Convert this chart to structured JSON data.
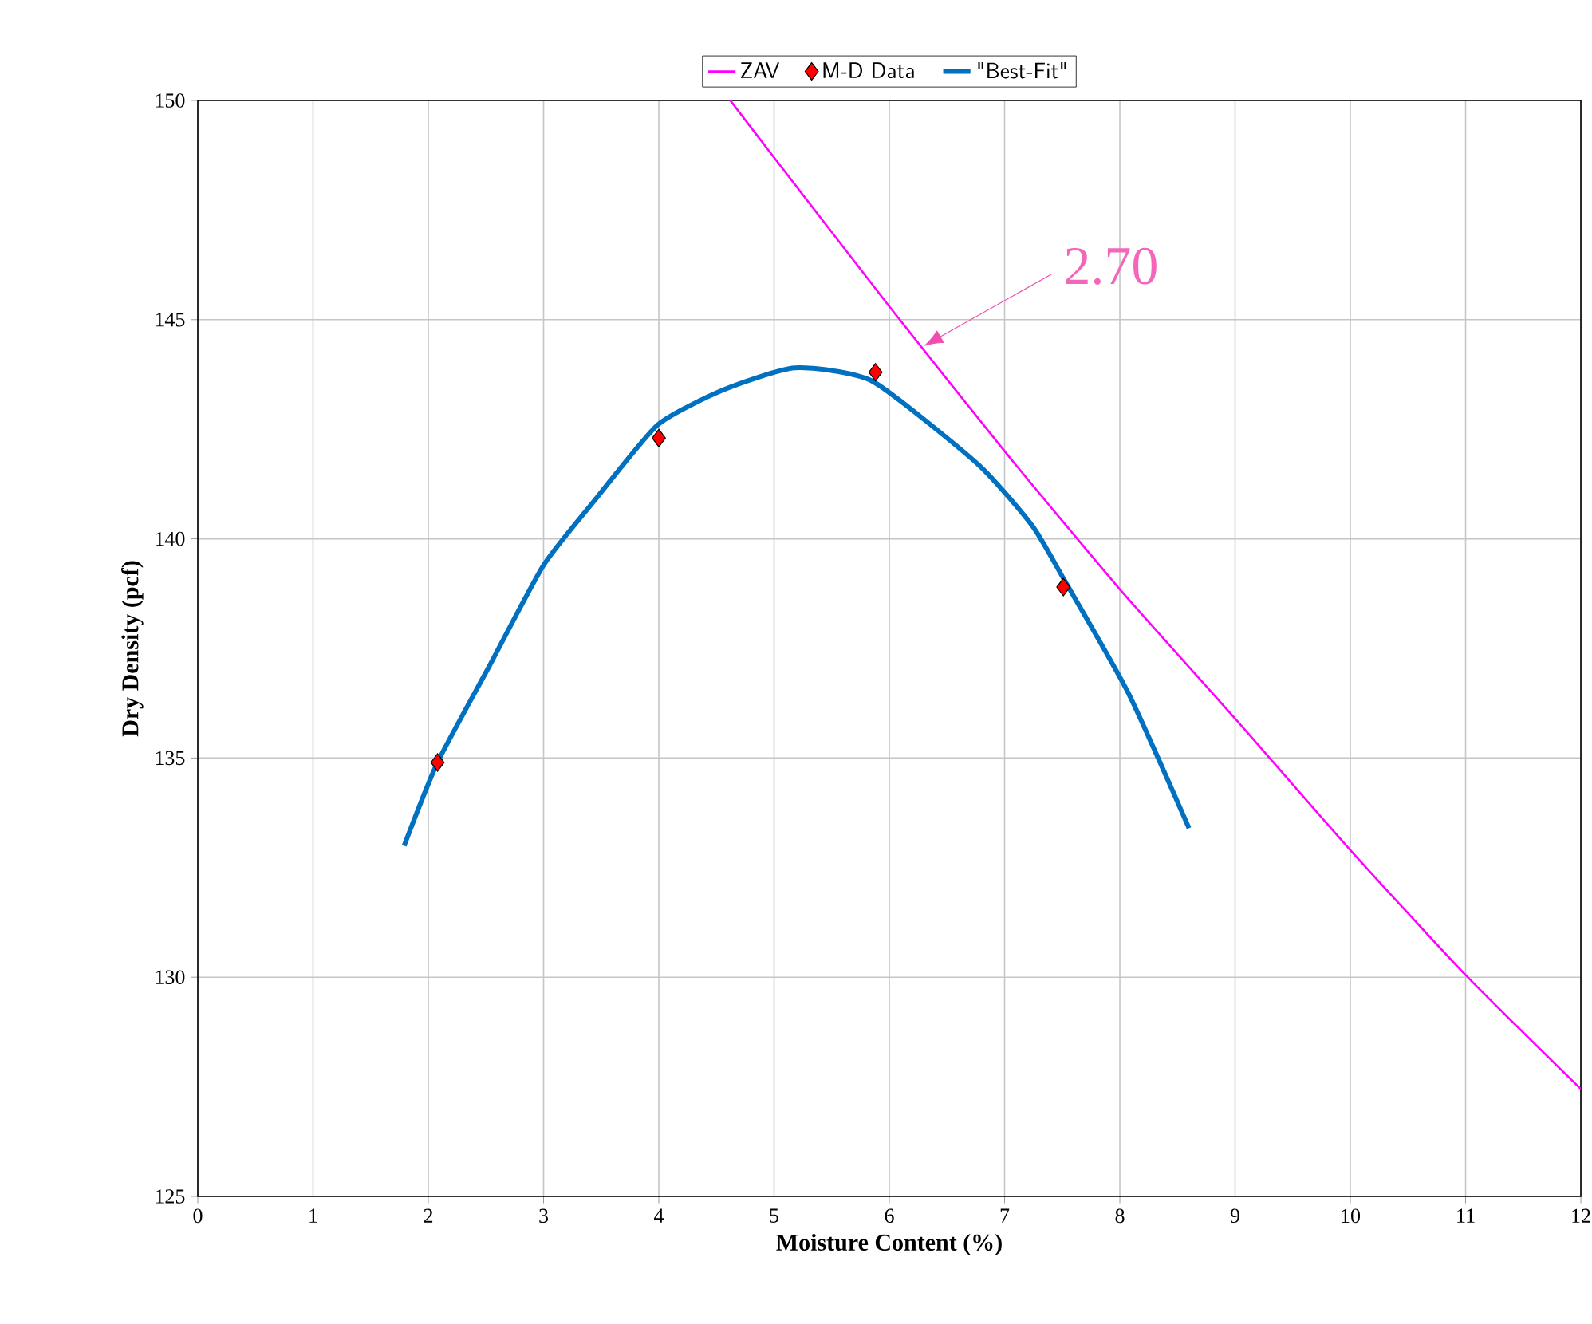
{
  "chart_data": {
    "type": "line",
    "xlabel": "Moisture Content (%)",
    "ylabel": "Dry Density (pcf)",
    "xlim": [
      0,
      12
    ],
    "ylim": [
      125,
      150
    ],
    "xticks": [
      0,
      1,
      2,
      3,
      4,
      5,
      6,
      7,
      8,
      9,
      10,
      11,
      12
    ],
    "yticks": [
      125,
      130,
      135,
      140,
      145,
      150
    ],
    "grid": true,
    "legend": "top",
    "annotations": [
      {
        "text": "2.70",
        "x": 6.3,
        "y": 144.4
      }
    ],
    "series": [
      {
        "name": "ZAV",
        "color": "#ff00ff",
        "marker": "none",
        "x": [
          4.62,
          5,
          6,
          7,
          8,
          9,
          10,
          11,
          12
        ],
        "values": [
          150.0,
          148.7,
          145.3,
          142.0,
          138.85,
          135.9,
          132.9,
          130.05,
          127.45
        ]
      },
      {
        "name": "M-D Data",
        "type": "scatter",
        "color": "#ff0000",
        "marker": "diamond",
        "x": [
          2.08,
          4.0,
          5.88,
          7.51
        ],
        "values": [
          134.9,
          142.3,
          143.8,
          138.9
        ]
      },
      {
        "name": "\"Best-Fit\"",
        "color": "#0070c0",
        "marker": "none",
        "x": [
          1.79,
          2.08,
          2.53,
          3.0,
          3.45,
          3.99,
          4.56,
          5.18,
          5.85,
          6.77,
          7.24,
          7.51,
          8.07,
          8.6
        ],
        "values": [
          133.0,
          134.9,
          137.1,
          139.4,
          140.9,
          142.6,
          143.4,
          143.9,
          143.6,
          141.7,
          140.3,
          139.1,
          136.5,
          133.4
        ]
      }
    ]
  }
}
